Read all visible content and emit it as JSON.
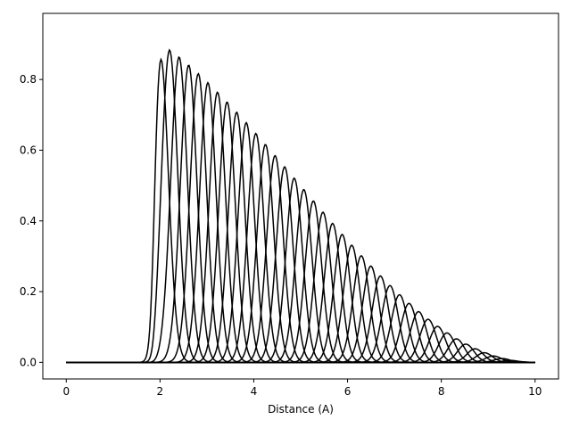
{
  "chart_data": {
    "type": "line",
    "title": "",
    "xlabel": "Distance (A)",
    "ylabel": "",
    "xlim": [
      -0.5,
      10.5
    ],
    "ylim": [
      -0.047,
      0.987
    ],
    "xticks": [
      0,
      2,
      4,
      6,
      8,
      10
    ],
    "yticks": [
      0.0,
      0.2,
      0.4,
      0.6,
      0.8
    ],
    "xtick_labels": [
      "0",
      "2",
      "4",
      "6",
      "8",
      "10"
    ],
    "ytick_labels": [
      "0.0",
      "0.2",
      "0.4",
      "0.6",
      "0.8"
    ],
    "grid": false,
    "legend": "none",
    "line_color": "#000000",
    "series_description": "Radial basis functions: Gaussians with centers spaced from 2.0 to 10.0 A, multiplied by a cosine cutoff envelope that reaches zero at 10 A; each curve is zero below about 1.5 A.",
    "curves": {
      "count": 40,
      "center_start": 2.0,
      "center_end": 10.0,
      "gaussian_eta": 16.0,
      "cutoff": 10.0,
      "x_range": [
        0,
        10
      ]
    }
  }
}
